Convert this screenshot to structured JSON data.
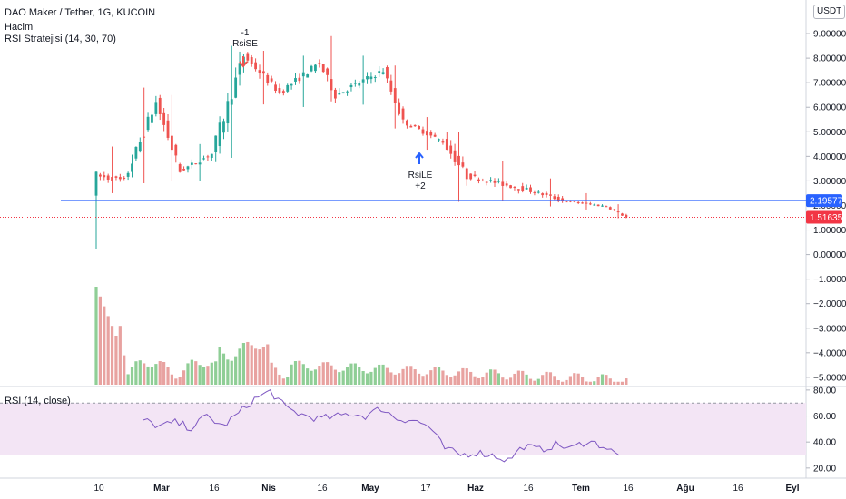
{
  "legend": {
    "title": "DAO Maker / Tether, 1G, KUCOIN",
    "volume": "Hacim",
    "strategy": "RSI Stratejisi (14, 30, 70)",
    "rsi": "RSI (14, close)"
  },
  "currency_badge": "USDT",
  "annotations": {
    "short": {
      "count": "-1",
      "label": "RsiSE"
    },
    "long": {
      "label": "RsiLE",
      "count": "+2"
    }
  },
  "colors": {
    "up": "#26a69a",
    "down": "#ef5350",
    "volume_up": "#8fce96",
    "volume_down": "#e8a2a0",
    "hline": "#2962ff",
    "rsi_line": "#7e57c2",
    "rsi_band": "#f3e5f5",
    "last_price": "#f23645"
  },
  "chart_data": [
    {
      "type": "candlestick",
      "title": "DAO Maker / Tether, 1G, KUCOIN",
      "x_ticks": [
        "10",
        "Mar",
        "16",
        "Nis",
        "16",
        "May",
        "17",
        "Haz",
        "16",
        "Tem",
        "16",
        "Ağu",
        "16",
        "Eyl"
      ],
      "y_ticks": [
        "9.00000",
        "8.00000",
        "7.00000",
        "6.00000",
        "5.00000",
        "4.00000",
        "3.00000",
        "2.00000",
        "1.00000",
        "0.00000",
        "−1.00000",
        "−2.00000",
        "−3.00000",
        "−4.00000",
        "−5.00000"
      ],
      "ylim": [
        -5.3,
        10.0
      ],
      "horizontal_line": {
        "value": 2.19577,
        "label": "2.19577"
      },
      "last_price": {
        "value": 1.51635,
        "label": "1.51635"
      },
      "segments": [
        {
          "days": 1,
          "from": 2.6,
          "to": 3.2,
          "min": 0.06,
          "max": 3.4
        },
        {
          "days": 7,
          "from": 3.2,
          "to": 3.0,
          "min": 2.4,
          "max": 4.4,
          "vol": 0.7
        },
        {
          "days": 8,
          "from": 3.0,
          "to": 6.2,
          "min": 2.7,
          "max": 6.8,
          "vol": 0.8
        },
        {
          "days": 6,
          "from": 6.2,
          "to": 3.4,
          "min": 2.8,
          "max": 6.5,
          "vol": 0.6
        },
        {
          "days": 8,
          "from": 3.4,
          "to": 4.1,
          "min": 2.9,
          "max": 4.5,
          "vol": 0.5
        },
        {
          "days": 8,
          "from": 4.1,
          "to": 8.1,
          "min": 3.7,
          "max": 8.5,
          "vol": 0.7
        },
        {
          "days": 9,
          "from": 8.1,
          "to": 6.6,
          "min": 6.0,
          "max": 8.3,
          "vol": 0.7
        },
        {
          "days": 10,
          "from": 6.6,
          "to": 7.8,
          "min": 5.9,
          "max": 8.1,
          "vol": 0.6
        },
        {
          "days": 4,
          "from": 7.8,
          "to": 6.5,
          "min": 6.1,
          "max": 8.9,
          "vol": 0.7
        },
        {
          "days": 12,
          "from": 6.5,
          "to": 7.5,
          "min": 6.0,
          "max": 8.1,
          "vol": 0.6
        },
        {
          "days": 5,
          "from": 7.5,
          "to": 5.4,
          "min": 5.0,
          "max": 7.7,
          "vol": 0.5
        },
        {
          "days": 10,
          "from": 5.4,
          "to": 4.6,
          "min": 4.2,
          "max": 5.6,
          "vol": 0.4
        },
        {
          "days": 6,
          "from": 4.6,
          "to": 3.2,
          "min": 2.0,
          "max": 5.0,
          "vol": 0.6
        },
        {
          "days": 16,
          "from": 3.2,
          "to": 2.6,
          "min": 2.1,
          "max": 3.8,
          "vol": 0.5
        },
        {
          "days": 8,
          "from": 2.6,
          "to": 2.2,
          "min": 1.9,
          "max": 3.1,
          "vol": 0.4
        },
        {
          "days": 11,
          "from": 2.2,
          "to": 1.96,
          "min": 1.8,
          "max": 2.5,
          "vol": 0.3
        },
        {
          "days": 5,
          "from": 1.96,
          "to": 1.52,
          "min": 1.45,
          "max": 2.05,
          "vol": 0.3
        }
      ],
      "volume_series": [
        {
          "from": 1.0,
          "to": 0.18,
          "days": 8
        },
        {
          "from": 0.18,
          "to": 0.2,
          "days": 41
        },
        {
          "from": 0.2,
          "to": 0.06,
          "days": 84
        }
      ]
    },
    {
      "type": "line",
      "title": "RSI (14, close)",
      "y_ticks": [
        "80.00",
        "60.00",
        "40.00",
        "20.00"
      ],
      "ylim": [
        15,
        82
      ],
      "band": [
        30,
        70
      ],
      "x": [
        0,
        4,
        8,
        12,
        16,
        20,
        24,
        28,
        32,
        36,
        40,
        44,
        48,
        52,
        56,
        60,
        64,
        68,
        72,
        76,
        80,
        84,
        88,
        92,
        96,
        100,
        104,
        108,
        112,
        116,
        120
      ],
      "values": [
        57,
        52,
        55,
        51,
        60,
        52,
        62,
        73,
        79,
        66,
        61,
        58,
        59,
        62,
        60,
        66,
        58,
        57,
        52,
        35,
        30,
        32,
        30,
        26,
        37,
        34,
        38,
        35,
        41,
        37,
        29
      ]
    }
  ]
}
